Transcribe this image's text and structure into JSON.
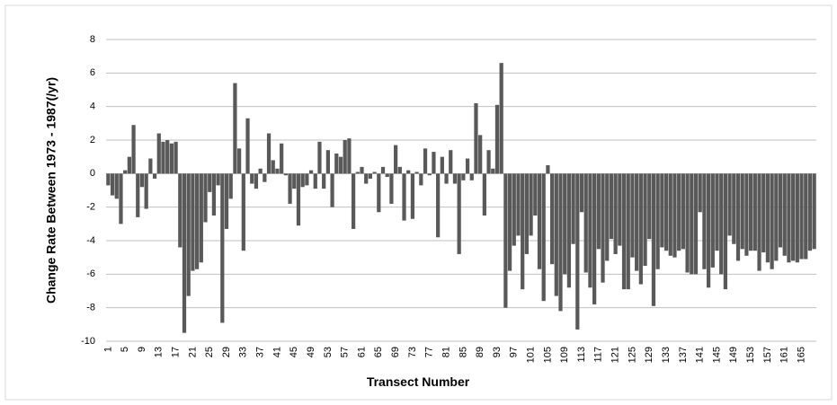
{
  "chart_data": {
    "type": "bar",
    "y_label": "Change Rate Between  1973 - 1987(/yr)",
    "x_label": "Transect Number",
    "color": "#595959",
    "grid": true,
    "ylim": [
      -10,
      8
    ],
    "yticks": [
      -10,
      -8,
      -6,
      -4,
      -2,
      0,
      2,
      4,
      6,
      8
    ],
    "categories": [
      "1",
      null,
      null,
      null,
      "5",
      null,
      null,
      null,
      "9",
      null,
      null,
      null,
      "13",
      null,
      null,
      null,
      "17",
      null,
      null,
      null,
      "21",
      null,
      null,
      null,
      "25",
      null,
      null,
      null,
      "29",
      null,
      null,
      null,
      "33",
      null,
      null,
      null,
      "37",
      null,
      null,
      null,
      "41",
      null,
      null,
      null,
      "45",
      null,
      null,
      null,
      "49",
      null,
      null,
      null,
      "53",
      null,
      null,
      null,
      "57",
      null,
      null,
      null,
      "61",
      null,
      null,
      null,
      "65",
      null,
      null,
      null,
      "69",
      null,
      null,
      null,
      "73",
      null,
      null,
      null,
      "77",
      null,
      null,
      null,
      "81",
      null,
      null,
      null,
      "85",
      null,
      null,
      null,
      "89",
      null,
      null,
      null,
      "93",
      null,
      null,
      null,
      "97",
      null,
      null,
      null,
      "101",
      null,
      null,
      null,
      "105",
      null,
      null,
      null,
      "109",
      null,
      null,
      null,
      "113",
      null,
      null,
      null,
      "117",
      null,
      null,
      null,
      "121",
      null,
      null,
      null,
      "125",
      null,
      null,
      null,
      "129",
      null,
      null,
      null,
      "133",
      null,
      null,
      null,
      "137",
      null,
      null,
      null,
      "141",
      null,
      null,
      null,
      "145",
      null,
      null,
      null,
      "149",
      null,
      null,
      null,
      "153",
      null,
      null,
      null,
      "157",
      null,
      null,
      null,
      "161",
      null,
      null,
      null,
      "165",
      null,
      null,
      null
    ],
    "values": [
      -0.7,
      -1.3,
      -1.5,
      -3.0,
      0.2,
      1.0,
      2.9,
      -2.6,
      -0.8,
      -2.1,
      0.9,
      -0.3,
      2.4,
      1.9,
      2.0,
      1.8,
      1.9,
      -4.4,
      -9.5,
      -7.3,
      -5.8,
      -5.7,
      -5.3,
      -2.9,
      -1.1,
      -2.5,
      -0.7,
      -8.9,
      -3.3,
      -1.5,
      5.4,
      1.5,
      -4.6,
      3.3,
      -0.6,
      -0.9,
      0.3,
      -0.5,
      2.4,
      0.8,
      0.3,
      1.8,
      -0.1,
      -1.8,
      -0.9,
      -3.1,
      -0.8,
      -0.7,
      0.2,
      -0.9,
      1.9,
      -0.9,
      1.4,
      -2.0,
      1.2,
      1.0,
      2.0,
      2.1,
      -3.3,
      0.1,
      0.4,
      -0.6,
      -0.3,
      0.1,
      -2.3,
      0.4,
      -0.2,
      -1.8,
      1.7,
      0.4,
      -2.8,
      0.2,
      -2.7,
      0.1,
      -0.7,
      1.5,
      -0.1,
      1.3,
      -3.8,
      1.0,
      -0.6,
      1.4,
      -0.6,
      -4.8,
      -0.4,
      0.9,
      -0.4,
      4.2,
      2.3,
      -2.5,
      1.4,
      0.3,
      4.1,
      6.6,
      -8.0,
      -5.8,
      -4.3,
      -3.7,
      -6.9,
      -4.8,
      -3.7,
      -2.5,
      -5.7,
      -7.6,
      0.5,
      -5.4,
      -7.3,
      -8.2,
      -6.0,
      -6.8,
      -4.2,
      -9.3,
      -2.3,
      -5.9,
      -6.8,
      -7.8,
      -4.5,
      -6.5,
      -5.2,
      -3.9,
      -4.8,
      -4.3,
      -6.9,
      -6.9,
      -5.0,
      -5.8,
      -6.6,
      -5.5,
      -3.9,
      -7.9,
      -5.7,
      -4.4,
      -4.6,
      -4.9,
      -5.0,
      -4.6,
      -4.5,
      -5.9,
      -6.0,
      -6.0,
      -2.3,
      -5.7,
      -6.8,
      -5.6,
      -4.6,
      -6.0,
      -6.9,
      -3.7,
      -4.2,
      -5.2,
      -4.5,
      -4.9,
      -4.6,
      -4.6,
      -5.8,
      -4.7,
      -5.3,
      -5.7,
      -5.2,
      -4.4,
      -4.9,
      -5.3,
      -5.2,
      -5.3,
      -5.1,
      -5.1,
      -4.6,
      -4.5
    ]
  }
}
